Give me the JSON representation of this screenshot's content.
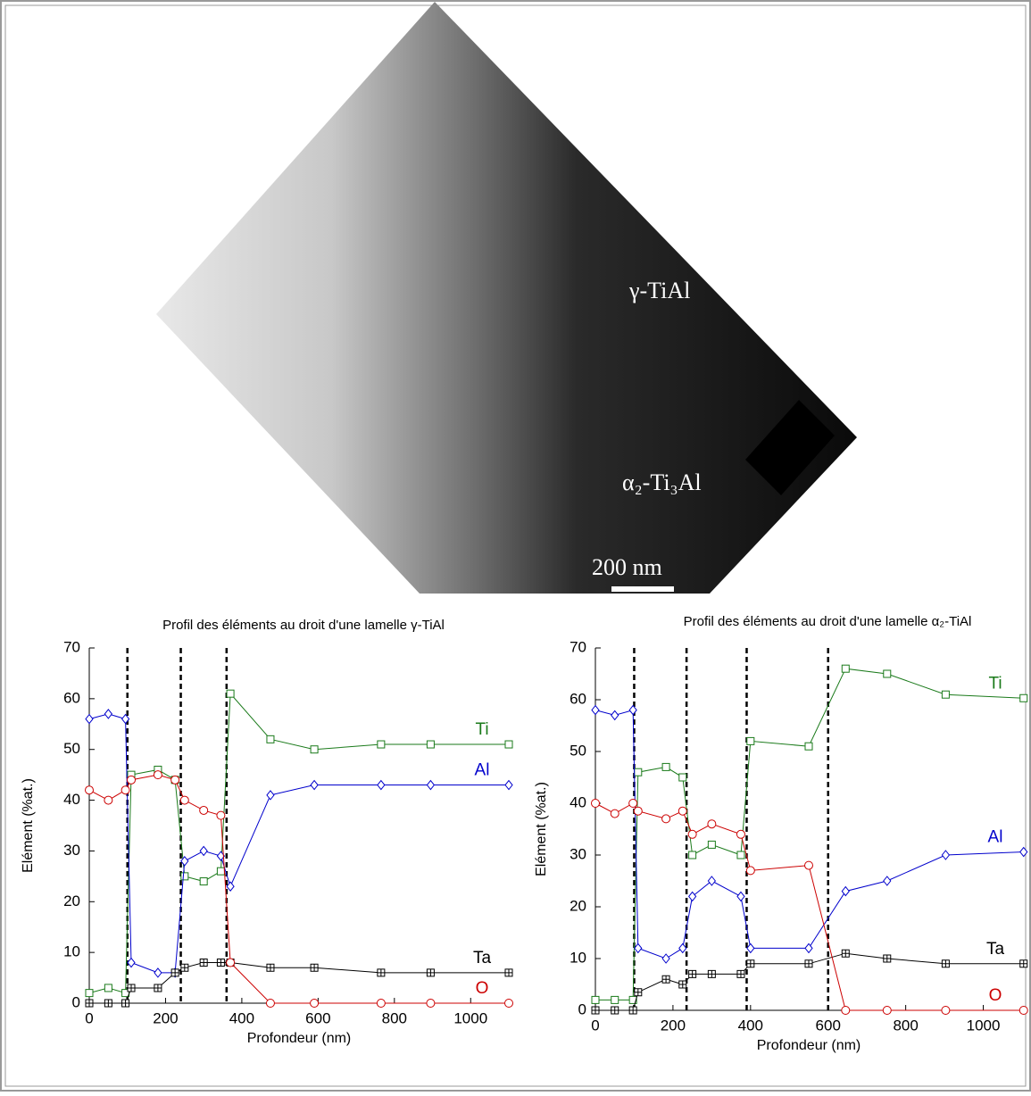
{
  "image": {
    "labels": [
      "γ-TiAl",
      "α₂-Ti₃Al"
    ],
    "scale_bar": "200 nm"
  },
  "chart_data": [
    {
      "type": "line",
      "title": "Profil des éléments au droit d'une lamelle γ-TiAl",
      "xlabel": "Profondeur (nm)",
      "ylabel": "Elément (%at.)",
      "xlim": [
        0,
        1100
      ],
      "xticks": [
        0,
        200,
        400,
        600,
        800,
        1000
      ],
      "ylim": [
        0,
        70
      ],
      "yticks": [
        0,
        10,
        20,
        30,
        40,
        50,
        60,
        70
      ],
      "vlines": [
        100,
        240,
        360
      ],
      "x": [
        0,
        50,
        95,
        110,
        180,
        225,
        250,
        300,
        345,
        370,
        475,
        590,
        765,
        895,
        1100
      ],
      "series": [
        {
          "name": "Ti",
          "color": "#1a7a1a",
          "marker": "square",
          "values": [
            2,
            3,
            2,
            45,
            46,
            44,
            25,
            24,
            26,
            61,
            52,
            50,
            51,
            51,
            51
          ]
        },
        {
          "name": "Al",
          "color": "#0000cc",
          "marker": "diamond",
          "values": [
            56,
            57,
            56,
            8,
            6,
            6,
            28,
            30,
            29,
            23,
            41,
            43,
            43,
            43,
            43
          ]
        },
        {
          "name": "Ta",
          "color": "#000000",
          "marker": "crossed-square",
          "values": [
            0,
            0,
            0,
            3,
            3,
            6,
            7,
            8,
            8,
            8,
            7,
            7,
            6,
            6,
            6
          ]
        },
        {
          "name": "O",
          "color": "#cc0000",
          "marker": "circle",
          "values": [
            42,
            40,
            42,
            44,
            45,
            44,
            40,
            38,
            37,
            8,
            0,
            0,
            0,
            0,
            0
          ]
        }
      ]
    },
    {
      "type": "line",
      "title": "Profil des éléments au droit d'une lamelle α₂-TiAl",
      "xlabel": "Profondeur (nm)",
      "ylabel": "Elément (%at.)",
      "xlim": [
        0,
        1100
      ],
      "xticks": [
        0,
        200,
        400,
        600,
        800,
        1000
      ],
      "ylim": [
        0,
        70
      ],
      "yticks": [
        0,
        10,
        20,
        30,
        40,
        50,
        60,
        70
      ],
      "vlines": [
        100,
        235,
        390,
        600
      ],
      "x": [
        0,
        50,
        97,
        110,
        182,
        225,
        250,
        300,
        375,
        400,
        550,
        645,
        752,
        903,
        1104
      ],
      "series": [
        {
          "name": "Ti",
          "color": "#1a7a1a",
          "marker": "square",
          "values": [
            2,
            2,
            2,
            46,
            47,
            45,
            30,
            32,
            30,
            52,
            51,
            66,
            65,
            61,
            60.3
          ]
        },
        {
          "name": "Al",
          "color": "#0000cc",
          "marker": "diamond",
          "values": [
            58,
            57,
            58,
            12,
            10,
            12,
            22,
            25,
            22,
            12,
            12,
            23,
            25,
            30,
            30.6
          ]
        },
        {
          "name": "Ta",
          "color": "#000000",
          "marker": "crossed-square",
          "values": [
            0,
            0,
            0,
            3.5,
            6,
            5,
            7,
            7,
            7,
            9,
            9,
            11,
            10,
            9,
            9
          ]
        },
        {
          "name": "O",
          "color": "#cc0000",
          "marker": "circle",
          "values": [
            40,
            38,
            40,
            38.5,
            37,
            38.5,
            34,
            36,
            34,
            27,
            28,
            0,
            0,
            0,
            0
          ]
        }
      ]
    }
  ]
}
